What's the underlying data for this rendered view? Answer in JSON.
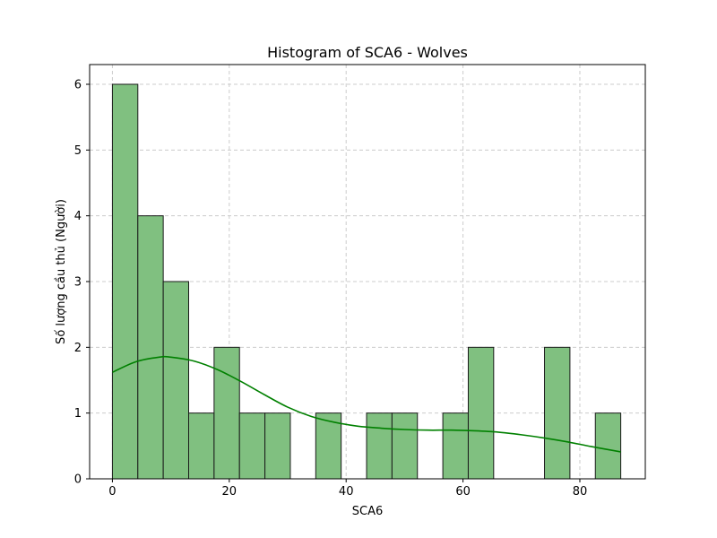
{
  "chart_data": {
    "type": "bar",
    "title": "Histogram of SCA6 - Wolves",
    "xlabel": "SCA6",
    "ylabel": "Số lượng cầu thủ (Người)",
    "xlim": [
      -3.9,
      91.2
    ],
    "ylim": [
      0,
      6.3
    ],
    "xticks": [
      0,
      20,
      40,
      60,
      80
    ],
    "yticks": [
      0,
      1,
      2,
      3,
      4,
      5,
      6
    ],
    "grid": true,
    "bin_edges": [
      0,
      4.35,
      8.7,
      13.05,
      17.4,
      21.75,
      26.1,
      30.45,
      34.8,
      39.15,
      43.5,
      47.85,
      52.2,
      56.55,
      60.9,
      65.25,
      69.6,
      73.95,
      78.3,
      82.65,
      87.0
    ],
    "counts": [
      6,
      4,
      3,
      1,
      2,
      1,
      1,
      0,
      1,
      0,
      1,
      1,
      0,
      1,
      2,
      0,
      0,
      2,
      0,
      1
    ],
    "kde": {
      "x": [
        0,
        4,
        8,
        10,
        14,
        18,
        22,
        26,
        30,
        34,
        38,
        42,
        46,
        50,
        54,
        58,
        62,
        66,
        70,
        74,
        78,
        82,
        87
      ],
      "y": [
        1.62,
        1.78,
        1.85,
        1.85,
        1.79,
        1.66,
        1.48,
        1.28,
        1.09,
        0.95,
        0.86,
        0.8,
        0.77,
        0.75,
        0.74,
        0.74,
        0.73,
        0.71,
        0.67,
        0.62,
        0.56,
        0.49,
        0.41
      ]
    },
    "colors": {
      "bar_fill": "#80c080",
      "bar_edge": "#1a1a1a",
      "kde_line": "#008000",
      "grid": "#cccccc"
    }
  }
}
